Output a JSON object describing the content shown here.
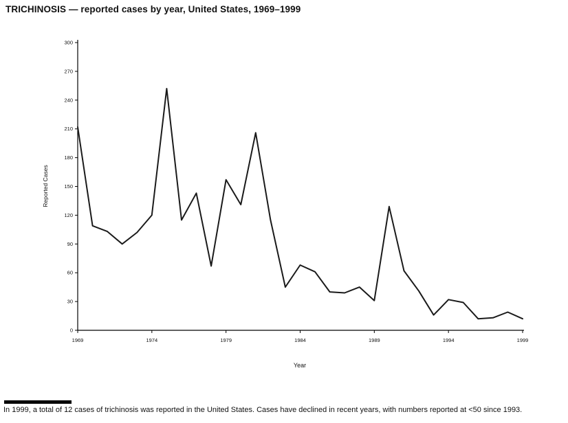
{
  "title": "TRICHINOSIS — reported cases by year, United States, 1969–1999",
  "footnote": "In 1999, a total of 12 cases of trichinosis was reported in the United States. Cases have declined in recent years, with numbers reported at <50 since 1993.",
  "chart_data": {
    "type": "line",
    "title": "TRICHINOSIS — reported cases by year, United States, 1969–1999",
    "xlabel": "Year",
    "ylabel": "Reported Cases",
    "xlim": [
      1969,
      1999
    ],
    "ylim": [
      0,
      300
    ],
    "x_ticks": [
      1969,
      1974,
      1979,
      1984,
      1989,
      1994,
      1999
    ],
    "y_ticks": [
      0,
      30,
      60,
      90,
      120,
      150,
      180,
      210,
      240,
      270,
      300
    ],
    "grid": false,
    "legend": "none",
    "line_color": "#1a1a1a",
    "x": [
      1969,
      1970,
      1971,
      1972,
      1973,
      1974,
      1975,
      1976,
      1977,
      1978,
      1979,
      1980,
      1981,
      1982,
      1983,
      1984,
      1985,
      1986,
      1987,
      1988,
      1989,
      1990,
      1991,
      1992,
      1993,
      1994,
      1995,
      1996,
      1997,
      1998,
      1999
    ],
    "values": [
      212,
      109,
      103,
      90,
      102,
      120,
      252,
      115,
      143,
      67,
      157,
      131,
      206,
      115,
      45,
      68,
      61,
      40,
      39,
      45,
      31,
      129,
      62,
      41,
      16,
      32,
      29,
      12,
      13,
      19,
      12
    ]
  }
}
